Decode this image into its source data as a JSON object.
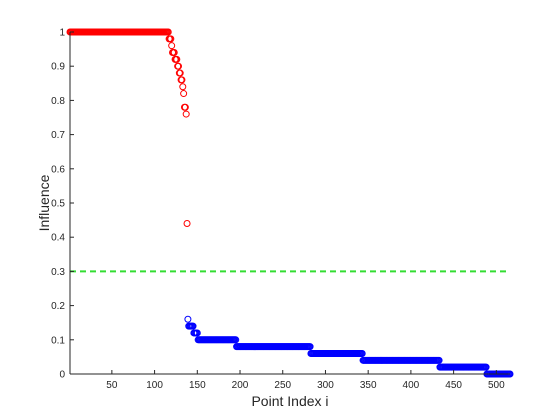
{
  "chart_data": {
    "type": "scatter",
    "xlabel": "Point Index i",
    "ylabel": "Influence",
    "xlim": [
      1,
      516
    ],
    "ylim": [
      0,
      1
    ],
    "x_ticks": [
      50,
      100,
      150,
      200,
      250,
      300,
      350,
      400,
      450,
      500
    ],
    "y_ticks": [
      0,
      0.1,
      0.2,
      0.3,
      0.4,
      0.5,
      0.6,
      0.7,
      0.8,
      0.9,
      1
    ],
    "y_tick_labels": [
      "0",
      "0.1",
      "0.2",
      "0.3",
      "0.4",
      "0.5",
      "0.6",
      "0.7",
      "0.8",
      "0.9",
      "1"
    ],
    "marker": "circle-open",
    "grid": false,
    "threshold": {
      "y": 0.3,
      "style": "dashed",
      "color": "#33dd33"
    },
    "series": [
      {
        "color": "#ff0000",
        "runs": [
          {
            "x_start": 1,
            "x_end": 116,
            "value": 1.0
          },
          {
            "x_start": 117,
            "x_end": 119,
            "value": 0.98
          },
          {
            "x_start": 120,
            "x_end": 120,
            "value": 0.96
          },
          {
            "x_start": 121,
            "x_end": 123,
            "value": 0.94
          },
          {
            "x_start": 124,
            "x_end": 126,
            "value": 0.92
          },
          {
            "x_start": 127,
            "x_end": 128,
            "value": 0.9
          },
          {
            "x_start": 129,
            "x_end": 130,
            "value": 0.88
          },
          {
            "x_start": 131,
            "x_end": 132,
            "value": 0.86
          },
          {
            "x_start": 133,
            "x_end": 133,
            "value": 0.84
          },
          {
            "x_start": 134,
            "x_end": 134,
            "value": 0.82
          },
          {
            "x_start": 135,
            "x_end": 136,
            "value": 0.78
          },
          {
            "x_start": 137,
            "x_end": 137,
            "value": 0.76
          },
          {
            "x_start": 138,
            "x_end": 138,
            "value": 0.44
          }
        ]
      },
      {
        "color": "#0000ff",
        "runs": [
          {
            "x_start": 139,
            "x_end": 139,
            "value": 0.16
          },
          {
            "x_start": 140,
            "x_end": 145,
            "value": 0.14
          },
          {
            "x_start": 146,
            "x_end": 150,
            "value": 0.12
          },
          {
            "x_start": 151,
            "x_end": 195,
            "value": 0.1
          },
          {
            "x_start": 196,
            "x_end": 282,
            "value": 0.08
          },
          {
            "x_start": 283,
            "x_end": 343,
            "value": 0.06
          },
          {
            "x_start": 344,
            "x_end": 433,
            "value": 0.04
          },
          {
            "x_start": 434,
            "x_end": 488,
            "value": 0.02
          },
          {
            "x_start": 489,
            "x_end": 516,
            "value": 0.0
          }
        ]
      }
    ]
  }
}
